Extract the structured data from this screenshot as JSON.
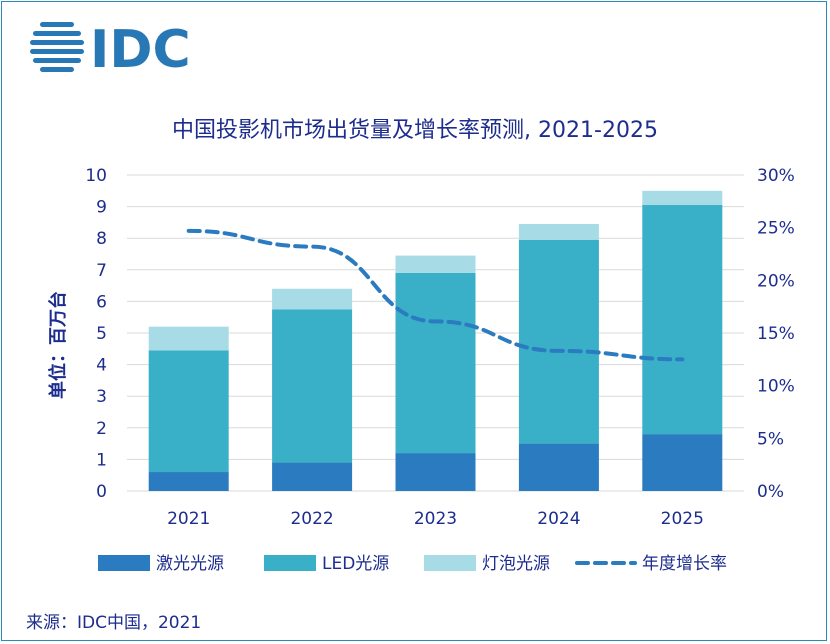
{
  "logo": {
    "text": "IDC"
  },
  "source": "来源：IDC中国，2021",
  "colors": {
    "laser": "#2a7bbf",
    "led": "#39afc8",
    "bulb": "#a7dbe6",
    "growth": "#2a7bbf",
    "text": "#1d2d8e",
    "grid": "#d9d9d9"
  },
  "chart_data": {
    "type": "bar",
    "stacked": true,
    "title": "中国投影机市场出货量及增长率预测, 2021-2025",
    "ylabel": "单位：百万台",
    "xlabel": "",
    "categories": [
      "2021",
      "2022",
      "2023",
      "2024",
      "2025"
    ],
    "ylim": [
      0,
      10
    ],
    "y_ticks": [
      "0",
      "1",
      "2",
      "3",
      "4",
      "5",
      "6",
      "7",
      "8",
      "9",
      "10"
    ],
    "y2lim": [
      0,
      30
    ],
    "y2_ticks": [
      "0%",
      "5%",
      "10%",
      "15%",
      "20%",
      "25%",
      "30%"
    ],
    "grid": true,
    "legend_position": "bottom",
    "series": [
      {
        "name": "激光光源",
        "values": [
          0.6,
          0.9,
          1.2,
          1.5,
          1.8
        ]
      },
      {
        "name": "LED光源",
        "values": [
          3.85,
          4.85,
          5.7,
          6.45,
          7.25
        ]
      },
      {
        "name": "灯泡光源",
        "values": [
          0.75,
          0.65,
          0.55,
          0.5,
          0.45
        ]
      },
      {
        "name": "年度增长率",
        "type": "line",
        "axis": "secondary",
        "unit": "%",
        "values": [
          24.7,
          23.2,
          16.1,
          13.3,
          12.5
        ]
      }
    ]
  }
}
